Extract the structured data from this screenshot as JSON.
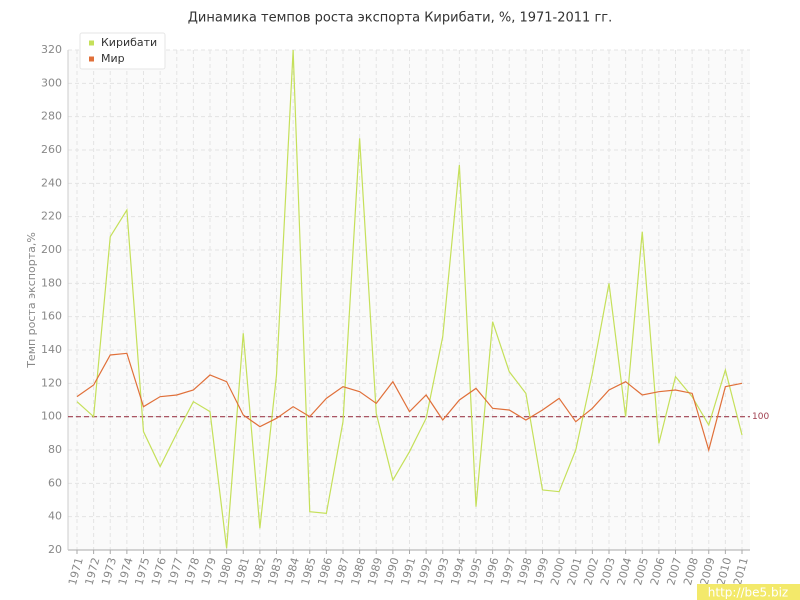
{
  "chart_data": {
    "type": "line",
    "title": "Динамика темпов роста экспорта Кирибати, %, 1971-2011 гг.",
    "y_label": "Темп роста экспорта,%",
    "categories": [
      "1971",
      "1972",
      "1973",
      "1974",
      "1975",
      "1976",
      "1977",
      "1978",
      "1979",
      "1980",
      "1981",
      "1982",
      "1983",
      "1984",
      "1985",
      "1986",
      "1987",
      "1988",
      "1989",
      "1990",
      "1991",
      "1992",
      "1993",
      "1994",
      "1995",
      "1996",
      "1997",
      "1998",
      "1999",
      "2000",
      "2001",
      "2002",
      "2003",
      "2004",
      "2005",
      "2006",
      "2007",
      "2008",
      "2009",
      "2010",
      "2011"
    ],
    "series": [
      {
        "name": "Кирибати",
        "color": "#c5e05a",
        "values": [
          109,
          100,
          208,
          224,
          91,
          70,
          90,
          109,
          103,
          21,
          150,
          33,
          125,
          320,
          43,
          42,
          97,
          267,
          102,
          62,
          79,
          99,
          148,
          251,
          46,
          157,
          127,
          114,
          56,
          55,
          80,
          126,
          180,
          100,
          211,
          84,
          124,
          112,
          95,
          128,
          89
        ]
      },
      {
        "name": "Мир",
        "color": "#e0703a",
        "values": [
          112,
          119,
          137,
          138,
          106,
          112,
          113,
          116,
          125,
          121,
          101,
          94,
          99,
          106,
          100,
          111,
          118,
          115,
          108,
          121,
          103,
          113,
          98,
          110,
          117,
          105,
          104,
          98,
          104,
          111,
          97,
          105,
          116,
          121,
          113,
          115,
          116,
          114,
          80,
          118,
          120
        ]
      }
    ],
    "reference_line": 100,
    "reference_color": "#a04050",
    "ylim": [
      20,
      320
    ],
    "yticks": [
      20,
      40,
      60,
      80,
      100,
      120,
      140,
      160,
      180,
      200,
      220,
      240,
      260,
      280,
      300,
      320
    ],
    "grid": true,
    "legend": "top-left",
    "watermark": "http://be5.biz"
  }
}
